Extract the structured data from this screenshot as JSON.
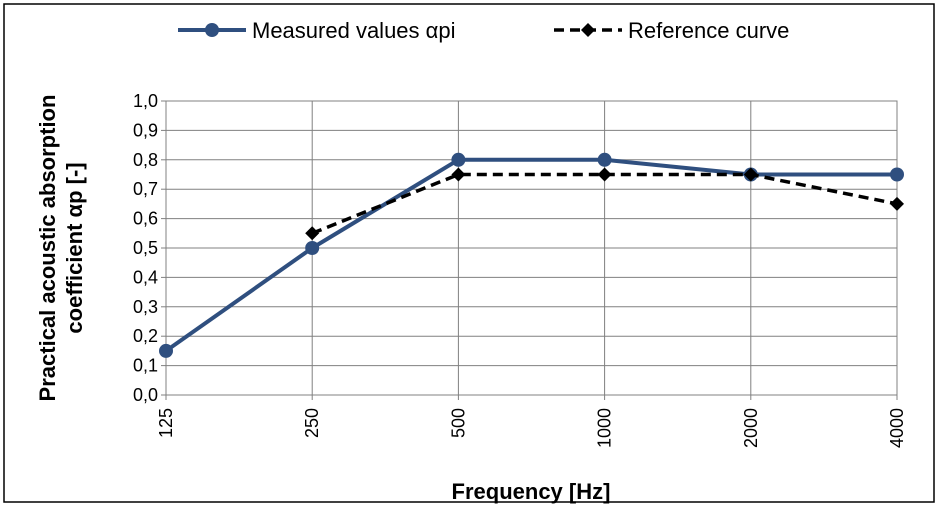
{
  "chart_data": {
    "type": "line",
    "categories": [
      "125",
      "250",
      "500",
      "1000",
      "2000",
      "4000"
    ],
    "series": [
      {
        "name": "Measured values αpi",
        "values": [
          0.15,
          0.5,
          0.8,
          0.8,
          0.75,
          0.75
        ],
        "color": "#2f4f7f",
        "style": "solid",
        "marker": "circle"
      },
      {
        "name": "Reference curve",
        "values": [
          null,
          0.55,
          0.75,
          0.75,
          0.75,
          0.65
        ],
        "color": "#000000",
        "style": "dashed",
        "marker": "diamond"
      }
    ],
    "xlabel": "Frequency [Hz]",
    "ylabel_lines": [
      "Practical acoustic absorption",
      "coefficient αp [-]"
    ],
    "ylim": [
      0,
      1.0
    ],
    "yticks": [
      "0,0",
      "0,1",
      "0,2",
      "0,3",
      "0,4",
      "0,5",
      "0,6",
      "0,7",
      "0,8",
      "0,9",
      "1,0"
    ],
    "ytick_values": [
      0,
      0.1,
      0.2,
      0.3,
      0.4,
      0.5,
      0.6,
      0.7,
      0.8,
      0.9,
      1.0
    ],
    "grid": true,
    "legend_position": "top"
  }
}
